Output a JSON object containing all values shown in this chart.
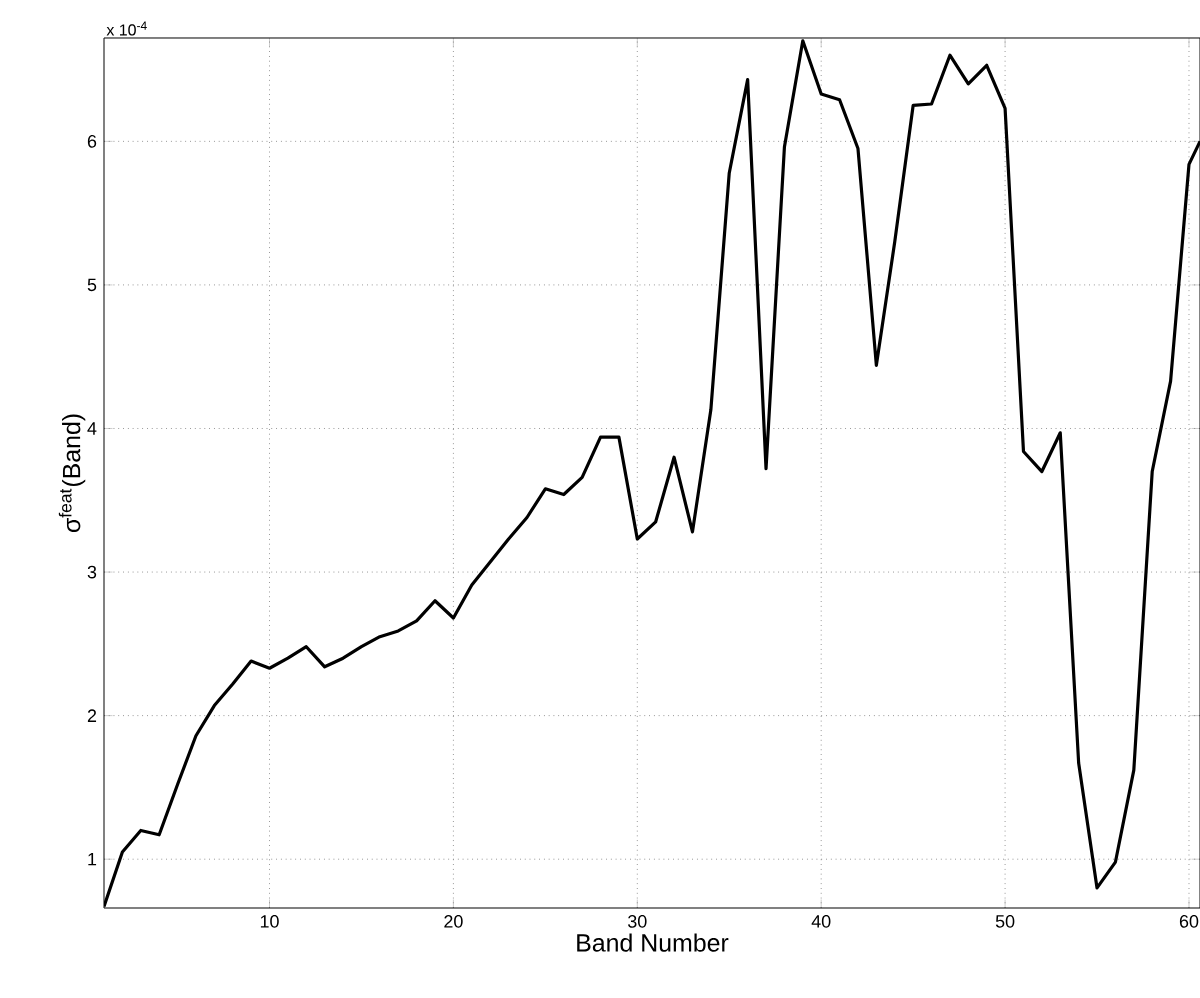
{
  "chart_data": {
    "type": "line",
    "xlabel": "Band Number",
    "ylabel": "σ$^{feat}$(Band)",
    "annotations": [
      "x 10$^{-4}$"
    ],
    "x": [
      1,
      2,
      3,
      4,
      5,
      6,
      7,
      8,
      9,
      10,
      11,
      12,
      13,
      14,
      15,
      16,
      17,
      18,
      19,
      20,
      21,
      22,
      23,
      24,
      25,
      26,
      27,
      28,
      29,
      30,
      31,
      32,
      33,
      34,
      35,
      36,
      37,
      38,
      39,
      40,
      41,
      42,
      43,
      44,
      45,
      46,
      47,
      48,
      49,
      50,
      51,
      52,
      53,
      54,
      55,
      56,
      57,
      58,
      59,
      60,
      60.6
    ],
    "series": [
      {
        "color": "#000000",
        "values": [
          0.67,
          1.05,
          1.2,
          1.17,
          1.52,
          1.86,
          2.07,
          2.22,
          2.38,
          2.33,
          2.4,
          2.48,
          2.34,
          2.4,
          2.48,
          2.55,
          2.59,
          2.66,
          2.8,
          2.68,
          2.91,
          3.07,
          3.23,
          3.38,
          3.58,
          3.54,
          3.66,
          3.94,
          3.94,
          3.23,
          3.35,
          3.8,
          3.28,
          4.13,
          5.78,
          6.43,
          3.72,
          5.96,
          6.7,
          6.33,
          6.29,
          5.95,
          4.44,
          5.3,
          6.25,
          6.26,
          6.6,
          6.4,
          6.53,
          6.23,
          3.84,
          3.7,
          3.97,
          1.67,
          0.8,
          0.98,
          1.62,
          3.7,
          4.33,
          5.84,
          6.0
        ]
      }
    ],
    "xlim": [
      1,
      60.6
    ],
    "ylim": [
      0.66,
      6.72
    ],
    "xticks": [
      10,
      20,
      30,
      40,
      50,
      60
    ],
    "yticks": [
      1,
      2,
      3,
      4,
      5,
      6
    ],
    "grid": true,
    "line_style": "solid",
    "marker": "none"
  }
}
